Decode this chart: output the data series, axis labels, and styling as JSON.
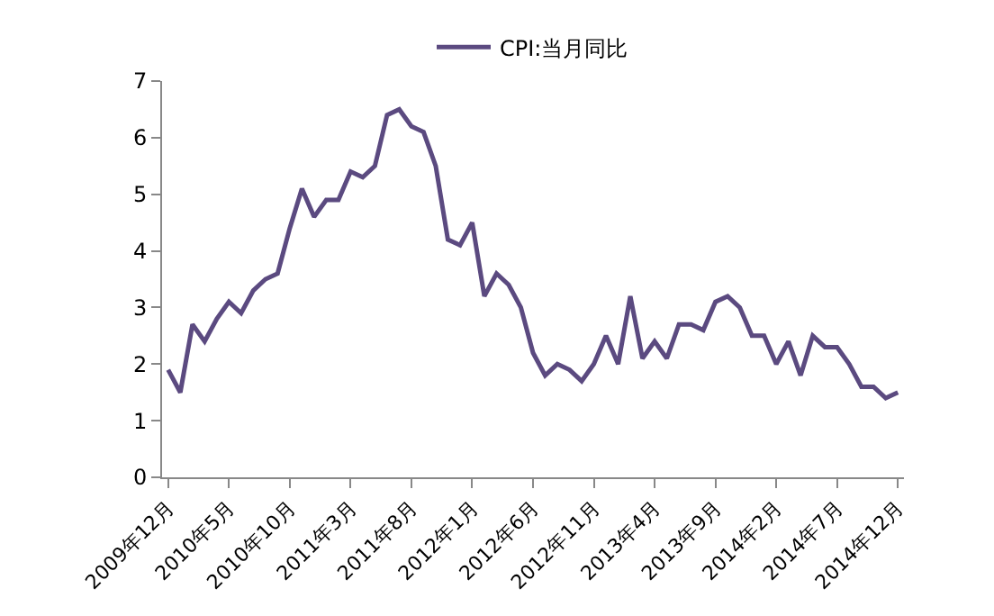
{
  "chart_data": {
    "type": "line",
    "categories": [
      "2009年12月",
      null,
      null,
      null,
      null,
      "2010年5月",
      null,
      null,
      null,
      null,
      "2010年10月",
      null,
      null,
      null,
      null,
      "2011年3月",
      null,
      null,
      null,
      null,
      "2011年8月",
      null,
      null,
      null,
      null,
      "2012年1月",
      null,
      null,
      null,
      null,
      "2012年6月",
      null,
      null,
      null,
      null,
      "2012年11月",
      null,
      null,
      null,
      null,
      "2013年4月",
      null,
      null,
      null,
      null,
      "2013年9月",
      null,
      null,
      null,
      null,
      "2014年2月",
      null,
      null,
      null,
      null,
      "2014年7月",
      null,
      null,
      null,
      null,
      "2014年12月"
    ],
    "series": [
      {
        "name": "CPI:当月同比",
        "color": "#5b4a80",
        "values": [
          1.9,
          1.5,
          2.7,
          2.4,
          2.8,
          3.1,
          2.9,
          3.3,
          3.5,
          3.6,
          4.4,
          5.1,
          4.6,
          4.9,
          4.9,
          5.4,
          5.3,
          5.5,
          6.4,
          6.5,
          6.2,
          6.1,
          5.5,
          4.2,
          4.1,
          4.5,
          3.2,
          3.6,
          3.4,
          3.0,
          2.2,
          1.8,
          2.0,
          1.9,
          1.7,
          2.0,
          2.5,
          2.0,
          3.2,
          2.1,
          2.4,
          2.1,
          2.7,
          2.7,
          2.6,
          3.1,
          3.2,
          3.0,
          2.5,
          2.5,
          2.0,
          2.4,
          1.8,
          2.5,
          2.3,
          2.3,
          2.0,
          1.6,
          1.6,
          1.4,
          1.5
        ]
      }
    ],
    "ylim": [
      0,
      7
    ],
    "yticks": [
      0,
      1,
      2,
      3,
      4,
      5,
      6,
      7
    ],
    "legend": "top",
    "marker": "none",
    "line_style": "solid"
  }
}
